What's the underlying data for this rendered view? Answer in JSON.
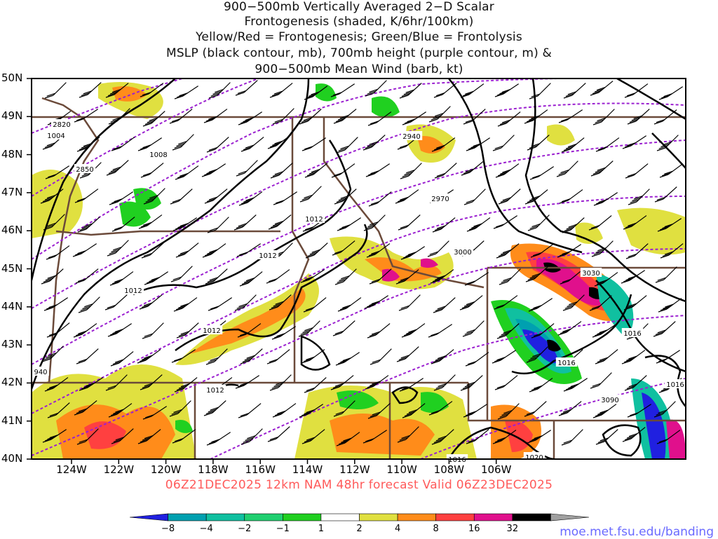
{
  "title": {
    "line1": "900−500mb Vertically Averaged 2−D Scalar",
    "line2": "Frontogenesis (shaded, K/6hr/100km)",
    "line3": "Yellow/Red = Frontogenesis;  Green/Blue = Frontolysis",
    "line4": "MSLP (black contour, mb), 700mb height (purple contour, m) &",
    "line5": "900−500mb Mean Wind (barb, kt)"
  },
  "map": {
    "lat_labels": [
      "50N",
      "49N",
      "48N",
      "47N",
      "46N",
      "45N",
      "44N",
      "43N",
      "42N",
      "41N",
      "40N"
    ],
    "lon_labels": [
      "124W",
      "122W",
      "120W",
      "118W",
      "116W",
      "114W",
      "112W",
      "110W",
      "108W",
      "106W"
    ],
    "mslp_labels": [
      "1004",
      "1008",
      "1012",
      "1012",
      "1012",
      "1012",
      "1012",
      "1016",
      "1016",
      "1016",
      "1016",
      "1020",
      "940"
    ],
    "height_labels": [
      "2820",
      "2850",
      "2940",
      "2970",
      "3000",
      "3030",
      "3090"
    ]
  },
  "valid_line": "06Z21DEC2025 12km NAM 48hr forecast Valid 06Z23DEC2025",
  "colorbar": {
    "labels": [
      "−8",
      "−4",
      "−2",
      "−1",
      "1",
      "2",
      "4",
      "8",
      "16",
      "32"
    ],
    "colors": [
      "#2020e0",
      "#00a0b0",
      "#10c0a0",
      "#20d070",
      "#20d020",
      "#ffffff",
      "#e0e040",
      "#ff8c1a",
      "#ff4040",
      "#e0108c",
      "#000000",
      "#a0a0a0"
    ]
  },
  "source": "moe.met.fsu.edu/banding",
  "colors": {
    "mslp": "#000000",
    "height": "#9b20d0",
    "borders": "#6b4a3a",
    "valid_text": "#ff5a5a",
    "source_text": "#6a6aff"
  }
}
